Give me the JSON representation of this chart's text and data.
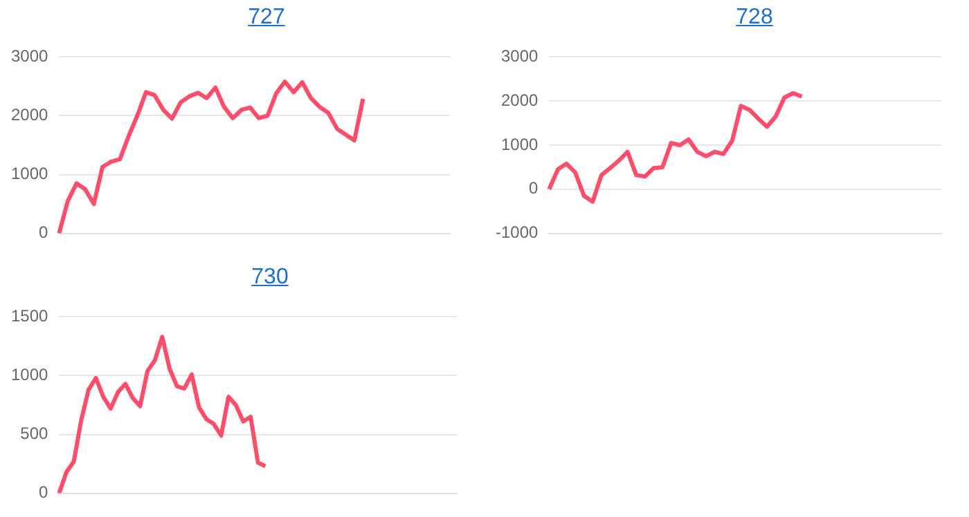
{
  "chart_data": [
    {
      "type": "line",
      "title": "727",
      "categories": [
        null,
        null,
        null,
        null,
        null,
        null,
        null,
        null,
        null,
        null,
        null,
        null,
        null,
        null,
        null,
        null,
        null,
        null,
        null,
        null,
        null,
        null,
        null,
        null,
        null,
        null,
        null,
        null,
        null,
        null,
        null,
        null,
        null,
        null,
        null,
        null,
        null,
        null,
        null,
        null,
        null,
        null,
        null,
        null,
        null,
        null
      ],
      "series": [
        {
          "color": "#fe4d6a",
          "values": [
            0,
            550,
            850,
            750,
            500,
            1130,
            1220,
            1260,
            1650,
            2000,
            2400,
            2350,
            2100,
            1950,
            2230,
            2330,
            2390,
            2300,
            2480,
            2150,
            1960,
            2100,
            2140,
            1960,
            2000,
            2380,
            2580,
            2400,
            2570,
            2300,
            2150,
            2050,
            1780,
            1680,
            1580,
            2290,
            null,
            null,
            null,
            null,
            null,
            null,
            null,
            null,
            null,
            null
          ]
        }
      ],
      "ylim": [
        0,
        3000
      ],
      "yticks": [
        0,
        1000,
        2000,
        3000
      ],
      "grid": "y",
      "marker": "none",
      "tick_labels": "y"
    },
    {
      "type": "line",
      "title": "728",
      "categories": [
        null,
        null,
        null,
        null,
        null,
        null,
        null,
        null,
        null,
        null,
        null,
        null,
        null,
        null,
        null,
        null,
        null,
        null,
        null,
        null,
        null,
        null,
        null,
        null,
        null,
        null,
        null,
        null,
        null,
        null,
        null,
        null,
        null,
        null,
        null,
        null,
        null,
        null,
        null,
        null,
        null,
        null,
        null,
        null,
        null,
        null
      ],
      "series": [
        {
          "color": "#fe4d6a",
          "values": [
            0,
            450,
            580,
            380,
            -150,
            -280,
            320,
            480,
            650,
            850,
            320,
            290,
            480,
            500,
            1050,
            1000,
            1130,
            850,
            750,
            850,
            800,
            1100,
            1890,
            1800,
            1600,
            1420,
            1650,
            2080,
            2180,
            2100,
            null,
            null,
            null,
            null,
            null,
            null,
            null,
            null,
            null,
            null,
            null,
            null,
            null,
            null,
            null,
            null
          ]
        }
      ],
      "ylim": [
        -1000,
        3000
      ],
      "yticks": [
        -1000,
        0,
        1000,
        2000,
        3000
      ],
      "grid": "y",
      "marker": "none",
      "tick_labels": "y"
    },
    {
      "type": "line",
      "title": "730",
      "categories": [
        null,
        null,
        null,
        null,
        null,
        null,
        null,
        null,
        null,
        null,
        null,
        null,
        null,
        null,
        null,
        null,
        null,
        null,
        null,
        null,
        null,
        null,
        null,
        null,
        null,
        null,
        null,
        null,
        null,
        null,
        null,
        null,
        null,
        null,
        null,
        null,
        null,
        null,
        null,
        null,
        null,
        null,
        null,
        null,
        null,
        null,
        null,
        null,
        null,
        null,
        null,
        null,
        null,
        null,
        null
      ],
      "series": [
        {
          "color": "#fe4d6a",
          "values": [
            0,
            180,
            270,
            620,
            880,
            980,
            820,
            720,
            860,
            930,
            810,
            740,
            1040,
            1130,
            1330,
            1060,
            910,
            890,
            1010,
            730,
            630,
            590,
            490,
            820,
            750,
            610,
            650,
            260,
            230,
            null,
            null,
            null,
            null,
            null,
            null,
            null,
            null,
            null,
            null,
            null,
            null,
            null,
            null,
            null,
            null,
            null,
            null,
            null,
            null,
            null,
            null,
            null,
            null,
            null,
            null
          ]
        }
      ],
      "ylim": [
        0,
        1500
      ],
      "yticks": [
        0,
        500,
        1000,
        1500
      ],
      "grid": "y",
      "marker": "none",
      "tick_labels": "y"
    }
  ]
}
